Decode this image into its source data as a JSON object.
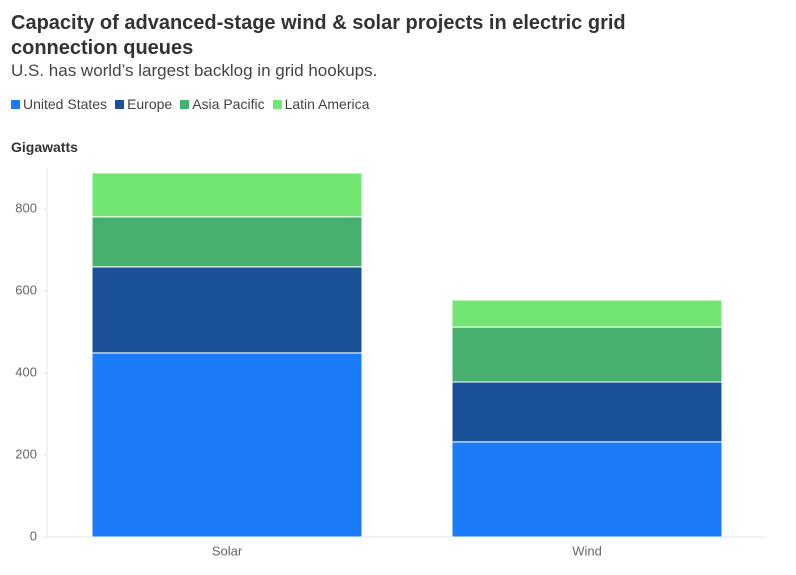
{
  "chart_data": {
    "type": "stacked-bar",
    "title": "Capacity of advanced-stage wind & solar projects in electric grid connection queues",
    "subtitle": "U.S. has world’s largest backlog in grid hookups.",
    "y_label": "Gigawatts",
    "categories": [
      "Solar",
      "Wind"
    ],
    "series": [
      {
        "name": "United States",
        "color": "#1a7cf8",
        "values": [
          449,
          232
        ]
      },
      {
        "name": "Europe",
        "color": "#1a5199",
        "values": [
          210,
          146
        ]
      },
      {
        "name": "Asia Pacific",
        "color": "#47b06e",
        "values": [
          122,
          134
        ]
      },
      {
        "name": "Latin America",
        "color": "#72e672",
        "values": [
          107,
          66
        ]
      }
    ],
    "ylim": [
      0,
      900
    ],
    "yticks": [
      0,
      200,
      400,
      600,
      800
    ],
    "grid": false
  }
}
